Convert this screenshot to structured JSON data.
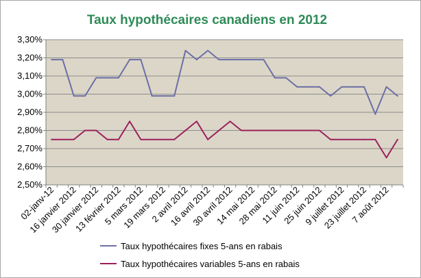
{
  "chart_data": {
    "type": "line",
    "title": "Taux hypothécaires canadiens en 2012",
    "xlabel": "",
    "ylabel": "",
    "ylim": [
      2.5,
      3.3
    ],
    "yticks": [
      "2,50%",
      "2,60%",
      "2,70%",
      "2,80%",
      "2,90%",
      "3,00%",
      "3,10%",
      "3,20%",
      "3,30%"
    ],
    "xtick_labels": [
      "02-janv-12",
      "16 janvier 2012",
      "30 janvier 2012",
      "13 février 2012",
      "5 mars 2012",
      "19 mars 2012",
      "2 avril 2012",
      "16 avril 2012",
      "30 avril 2012",
      "14 mai 2012",
      "28 mai 2012",
      "11 juin 2012",
      "25 juin 2012",
      "9 juillet 2012",
      "23 juillet 2012",
      "7 août 2012"
    ],
    "grid": true,
    "legend": "bottom",
    "series": [
      {
        "name": "Taux hypothécaires fixes 5-ans en rabais",
        "color": "#6b6fa6",
        "values": [
          3.19,
          3.19,
          2.99,
          2.99,
          3.09,
          3.09,
          3.09,
          3.19,
          3.19,
          2.99,
          2.99,
          2.99,
          3.24,
          3.19,
          3.24,
          3.19,
          3.19,
          3.19,
          3.19,
          3.19,
          3.09,
          3.09,
          3.04,
          3.04,
          3.04,
          2.99,
          3.04,
          3.04,
          3.04,
          2.89,
          3.04,
          2.99
        ]
      },
      {
        "name": "Taux hypothécaires variables 5-ans en rabais",
        "color": "#9b1f5c",
        "values": [
          2.75,
          2.75,
          2.75,
          2.8,
          2.8,
          2.75,
          2.75,
          2.85,
          2.75,
          2.75,
          2.75,
          2.75,
          2.8,
          2.85,
          2.75,
          2.8,
          2.85,
          2.8,
          2.8,
          2.8,
          2.8,
          2.8,
          2.8,
          2.8,
          2.8,
          2.75,
          2.75,
          2.75,
          2.75,
          2.75,
          2.65,
          2.75
        ]
      }
    ]
  },
  "colors": {
    "title": "#2e8b57",
    "plot_background": "#dcd6c8",
    "gridline": "#8c8c8c"
  }
}
